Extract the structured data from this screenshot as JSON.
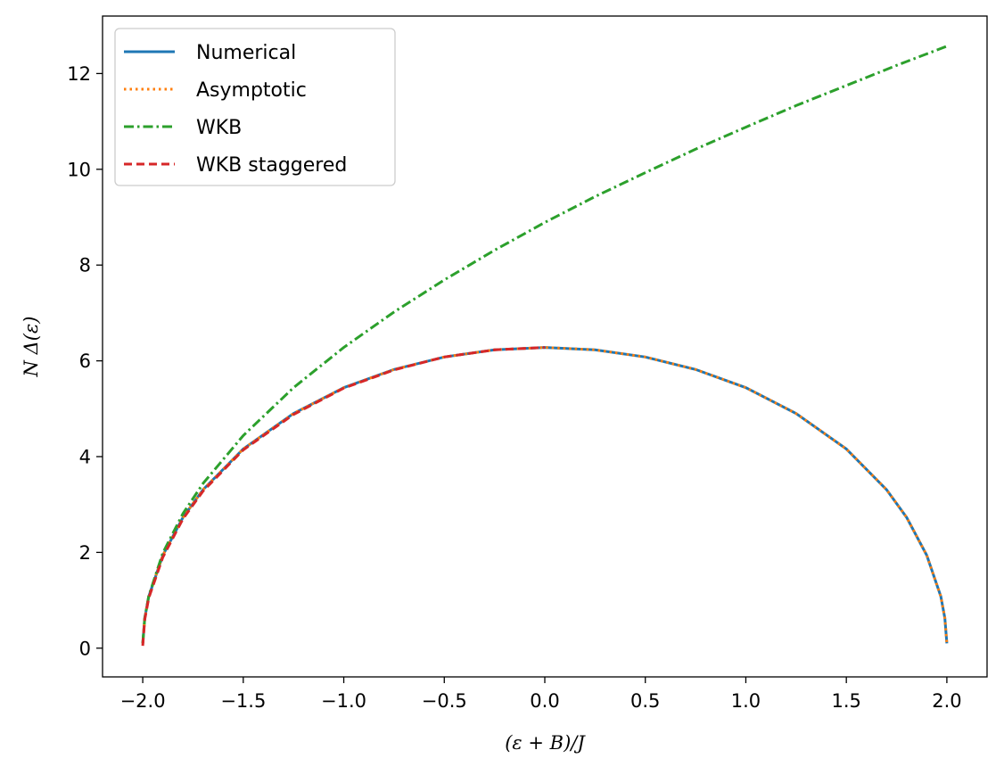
{
  "chart_data": {
    "type": "line",
    "xlabel": "(ε + B)/J",
    "ylabel": "N Δ(ε)",
    "xlim": [
      -2.2,
      2.2
    ],
    "ylim": [
      -0.6,
      13.2
    ],
    "xticks": [
      -2.0,
      -1.5,
      -1.0,
      -0.5,
      0.0,
      0.5,
      1.0,
      1.5,
      2.0
    ],
    "xtick_labels": [
      "−2.0",
      "−1.5",
      "−1.0",
      "−0.5",
      "0.0",
      "0.5",
      "1.0",
      "1.5",
      "2.0"
    ],
    "yticks": [
      0,
      2,
      4,
      6,
      8,
      10,
      12
    ],
    "ytick_labels": [
      "0",
      "2",
      "4",
      "6",
      "8",
      "10",
      "12"
    ],
    "grid": false,
    "legend_position": "top-left",
    "series": [
      {
        "name": "Numerical",
        "color": "#1f77b4",
        "style": "solid",
        "x": [
          -2.0,
          -1.99,
          -1.97,
          -1.9,
          -1.8,
          -1.7,
          -1.5,
          -1.25,
          -1.0,
          -0.75,
          -0.5,
          -0.25,
          0.0,
          0.25,
          0.5,
          0.75,
          1.0,
          1.25,
          1.5,
          1.7,
          1.8,
          1.9,
          1.97,
          1.99,
          2.0
        ],
        "y": [
          0.1,
          0.63,
          1.08,
          1.94,
          2.73,
          3.31,
          4.16,
          4.9,
          5.44,
          5.82,
          6.08,
          6.23,
          6.28,
          6.23,
          6.08,
          5.82,
          5.44,
          4.9,
          4.16,
          3.31,
          2.73,
          1.94,
          1.08,
          0.63,
          0.1
        ]
      },
      {
        "name": "Asymptotic",
        "color": "#ff7f0e",
        "style": "dotted",
        "x": [
          -2.0,
          -1.99,
          -1.97,
          -1.9,
          -1.8,
          -1.7,
          -1.5,
          -1.25,
          -1.0,
          -0.75,
          -0.5,
          -0.25,
          0.0,
          0.25,
          0.5,
          0.75,
          1.0,
          1.25,
          1.5,
          1.7,
          1.8,
          1.9,
          1.97,
          1.99,
          2.0
        ],
        "y": [
          0.1,
          0.63,
          1.08,
          1.94,
          2.73,
          3.31,
          4.16,
          4.9,
          5.44,
          5.82,
          6.08,
          6.23,
          6.28,
          6.23,
          6.08,
          5.82,
          5.44,
          4.9,
          4.16,
          3.31,
          2.73,
          1.94,
          1.08,
          0.63,
          0.1
        ]
      },
      {
        "name": "WKB",
        "color": "#2ca02c",
        "style": "dashdot",
        "x": [
          -2.0,
          -1.99,
          -1.97,
          -1.9,
          -1.8,
          -1.7,
          -1.5,
          -1.25,
          -1.0,
          -0.75,
          -0.5,
          -0.25,
          0.0,
          0.25,
          0.5,
          0.75,
          1.0,
          1.25,
          1.5,
          1.75,
          2.0
        ],
        "y": [
          0.1,
          0.63,
          1.09,
          1.99,
          2.81,
          3.44,
          4.44,
          5.44,
          6.28,
          7.02,
          7.69,
          8.31,
          8.89,
          9.43,
          9.93,
          10.42,
          10.88,
          11.33,
          11.75,
          12.17,
          12.57
        ]
      },
      {
        "name": "WKB staggered",
        "color": "#d62728",
        "style": "dashed",
        "x": [
          -2.0,
          -1.99,
          -1.97,
          -1.9,
          -1.8,
          -1.7,
          -1.5,
          -1.25,
          -1.0,
          -0.75,
          -0.5,
          -0.25,
          0.0
        ],
        "y": [
          0.05,
          0.6,
          1.05,
          1.9,
          2.7,
          3.28,
          4.14,
          4.88,
          5.43,
          5.81,
          6.08,
          6.23,
          6.28
        ]
      }
    ]
  }
}
